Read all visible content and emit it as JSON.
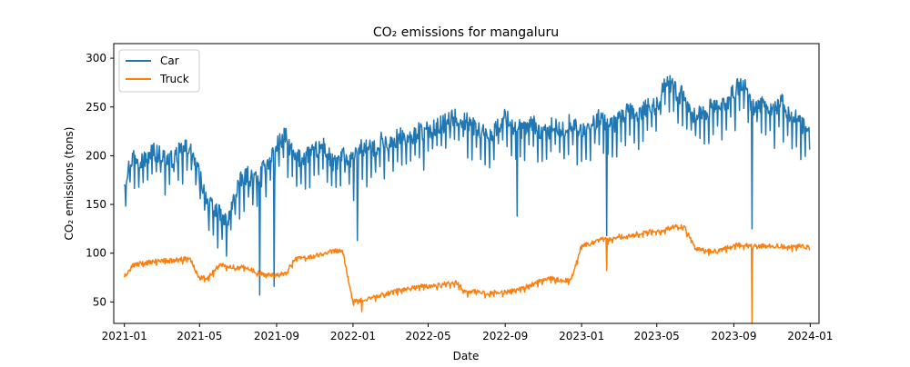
{
  "chart_data": {
    "type": "line",
    "title": "CO₂ emissions for mangaluru",
    "xlabel": "Date",
    "ylabel": "CO₂ emissions (tons)",
    "x_range": [
      "2020-12-15",
      "2024-01-15"
    ],
    "ylim": [
      28,
      315
    ],
    "x_ticks": [
      "2021-01-01",
      "2021-05-01",
      "2021-09-01",
      "2022-01-01",
      "2022-05-01",
      "2022-09-01",
      "2023-01-01",
      "2023-05-01",
      "2023-09-01",
      "2024-01-01"
    ],
    "x_tick_labels": [
      "2021-01",
      "2021-05",
      "2021-09",
      "2022-01",
      "2022-05",
      "2022-09",
      "2023-01",
      "2023-05",
      "2023-09",
      "2024-01"
    ],
    "y_ticks": [
      50,
      100,
      150,
      200,
      250,
      300
    ],
    "y_tick_labels": [
      "50",
      "100",
      "150",
      "200",
      "250",
      "300"
    ],
    "grid": false,
    "legend_position": "upper-left",
    "series": [
      {
        "name": "Car",
        "color": "#1f77b4",
        "x": [
          "2021-01-01",
          "2021-01-15",
          "2021-02-01",
          "2021-02-15",
          "2021-03-01",
          "2021-03-15",
          "2021-04-01",
          "2021-04-15",
          "2021-05-01",
          "2021-05-15",
          "2021-06-01",
          "2021-06-15",
          "2021-07-01",
          "2021-07-15",
          "2021-08-01",
          "2021-08-15",
          "2021-09-01",
          "2021-09-15",
          "2021-10-01",
          "2021-10-15",
          "2021-11-01",
          "2021-11-15",
          "2021-12-01",
          "2021-12-15",
          "2022-01-01",
          "2022-01-15",
          "2022-02-01",
          "2022-02-15",
          "2022-03-01",
          "2022-03-15",
          "2022-04-01",
          "2022-04-15",
          "2022-05-01",
          "2022-05-15",
          "2022-06-01",
          "2022-06-15",
          "2022-07-01",
          "2022-07-15",
          "2022-08-01",
          "2022-08-15",
          "2022-09-01",
          "2022-09-15",
          "2022-10-01",
          "2022-10-15",
          "2022-11-01",
          "2022-11-15",
          "2022-12-01",
          "2022-12-15",
          "2023-01-01",
          "2023-01-15",
          "2023-02-01",
          "2023-02-15",
          "2023-03-01",
          "2023-03-15",
          "2023-04-01",
          "2023-04-15",
          "2023-05-01",
          "2023-05-15",
          "2023-06-01",
          "2023-06-15",
          "2023-07-01",
          "2023-07-15",
          "2023-08-01",
          "2023-08-15",
          "2023-09-01",
          "2023-09-15",
          "2023-10-01",
          "2023-10-15",
          "2023-11-01",
          "2023-11-15",
          "2023-12-01",
          "2023-12-15",
          "2023-12-31"
        ],
        "values": [
          175,
          200,
          195,
          205,
          200,
          195,
          205,
          210,
          180,
          150,
          140,
          130,
          170,
          180,
          175,
          190,
          210,
          220,
          195,
          200,
          205,
          210,
          190,
          200,
          195,
          210,
          205,
          215,
          210,
          220,
          215,
          225,
          225,
          230,
          235,
          240,
          235,
          230,
          220,
          225,
          240,
          230,
          225,
          235,
          220,
          230,
          225,
          235,
          225,
          230,
          240,
          230,
          235,
          245,
          240,
          250,
          250,
          280,
          265,
          260,
          240,
          245,
          250,
          250,
          265,
          275,
          250,
          255,
          245,
          255,
          240,
          235,
          220
        ]
      },
      {
        "name": "Truck",
        "color": "#ff7f0e",
        "x": [
          "2021-01-01",
          "2021-01-15",
          "2021-02-01",
          "2021-02-15",
          "2021-03-01",
          "2021-03-15",
          "2021-04-01",
          "2021-04-15",
          "2021-05-01",
          "2021-05-15",
          "2021-06-01",
          "2021-06-15",
          "2021-07-01",
          "2021-07-15",
          "2021-08-01",
          "2021-08-15",
          "2021-09-01",
          "2021-09-15",
          "2021-10-01",
          "2021-10-15",
          "2021-11-01",
          "2021-11-15",
          "2021-12-01",
          "2021-12-15",
          "2022-01-01",
          "2022-01-15",
          "2022-02-01",
          "2022-02-15",
          "2022-03-01",
          "2022-03-15",
          "2022-04-01",
          "2022-04-15",
          "2022-05-01",
          "2022-05-15",
          "2022-06-01",
          "2022-06-15",
          "2022-07-01",
          "2022-07-15",
          "2022-08-01",
          "2022-08-15",
          "2022-09-01",
          "2022-09-15",
          "2022-10-01",
          "2022-10-15",
          "2022-11-01",
          "2022-11-15",
          "2022-12-01",
          "2022-12-15",
          "2023-01-01",
          "2023-01-15",
          "2023-02-01",
          "2023-02-15",
          "2023-03-01",
          "2023-03-15",
          "2023-04-01",
          "2023-04-15",
          "2023-05-01",
          "2023-05-15",
          "2023-06-01",
          "2023-06-15",
          "2023-07-01",
          "2023-07-15",
          "2023-08-01",
          "2023-08-15",
          "2023-09-01",
          "2023-09-15",
          "2023-10-01",
          "2023-10-15",
          "2023-11-01",
          "2023-11-15",
          "2023-12-01",
          "2023-12-15",
          "2023-12-31"
        ],
        "values": [
          76,
          88,
          90,
          91,
          93,
          92,
          94,
          95,
          75,
          75,
          88,
          87,
          85,
          86,
          80,
          78,
          78,
          79,
          95,
          96,
          97,
          100,
          102,
          103,
          50,
          52,
          55,
          57,
          60,
          62,
          64,
          66,
          66,
          67,
          69,
          70,
          60,
          61,
          59,
          60,
          60,
          62,
          65,
          68,
          73,
          74,
          72,
          73,
          108,
          110,
          115,
          114,
          118,
          117,
          120,
          122,
          122,
          125,
          128,
          126,
          105,
          103,
          102,
          104,
          108,
          109,
          107,
          108,
          108,
          107,
          106,
          107,
          106
        ]
      }
    ],
    "dips": [
      {
        "series": "Car",
        "x": "2021-08-05",
        "value": 57
      },
      {
        "series": "Car",
        "x": "2021-08-28",
        "value": 66
      },
      {
        "series": "Car",
        "x": "2022-01-08",
        "value": 113
      },
      {
        "series": "Car",
        "x": "2022-09-20",
        "value": 138
      },
      {
        "series": "Car",
        "x": "2023-02-10",
        "value": 118
      },
      {
        "series": "Car",
        "x": "2023-09-30",
        "value": 125
      },
      {
        "series": "Truck",
        "x": "2022-01-15",
        "value": 40
      },
      {
        "series": "Truck",
        "x": "2023-02-10",
        "value": 82
      },
      {
        "series": "Truck",
        "x": "2023-09-30",
        "value": 28
      }
    ]
  }
}
